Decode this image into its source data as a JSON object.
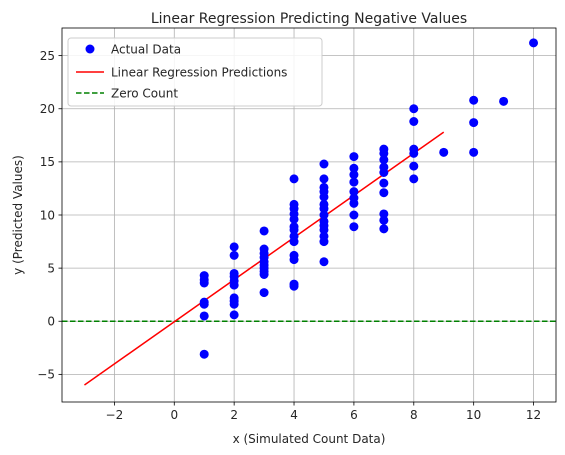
{
  "chart_data": {
    "type": "scatter",
    "title": "Linear Regression Predicting Negative Values",
    "xlabel": "x (Simulated Count Data)",
    "ylabel": "y (Predicted Values)",
    "xlim": [
      -3.75,
      12.75
    ],
    "ylim": [
      -7.6,
      27.6
    ],
    "xticks": [
      -2,
      0,
      2,
      4,
      6,
      8,
      10,
      12
    ],
    "yticks": [
      -5,
      0,
      5,
      10,
      15,
      20,
      25
    ],
    "grid": true,
    "legend_position": "upper-left",
    "series": [
      {
        "name": "Actual Data",
        "kind": "scatter",
        "color": "#0000ff",
        "points": [
          [
            1,
            4.3
          ],
          [
            1,
            3.9
          ],
          [
            1,
            3.6
          ],
          [
            1,
            1.8
          ],
          [
            1,
            1.6
          ],
          [
            1,
            0.5
          ],
          [
            1,
            -3.1
          ],
          [
            2,
            7.0
          ],
          [
            2,
            6.2
          ],
          [
            2,
            4.5
          ],
          [
            2,
            4.2
          ],
          [
            2,
            3.8
          ],
          [
            2,
            3.4
          ],
          [
            2,
            2.2
          ],
          [
            2,
            1.9
          ],
          [
            2,
            1.6
          ],
          [
            2,
            0.6
          ],
          [
            3,
            8.5
          ],
          [
            3,
            6.8
          ],
          [
            3,
            6.4
          ],
          [
            3,
            6.0
          ],
          [
            3,
            5.6
          ],
          [
            3,
            5.3
          ],
          [
            3,
            5.0
          ],
          [
            3,
            4.7
          ],
          [
            3,
            4.4
          ],
          [
            3,
            2.7
          ],
          [
            4,
            13.4
          ],
          [
            4,
            11.0
          ],
          [
            4,
            10.6
          ],
          [
            4,
            10.1
          ],
          [
            4,
            9.6
          ],
          [
            4,
            8.9
          ],
          [
            4,
            8.6
          ],
          [
            4,
            8.0
          ],
          [
            4,
            7.5
          ],
          [
            4,
            6.2
          ],
          [
            4,
            5.8
          ],
          [
            4,
            3.5
          ],
          [
            4,
            3.3
          ],
          [
            5,
            14.8
          ],
          [
            5,
            13.4
          ],
          [
            5,
            12.6
          ],
          [
            5,
            12.2
          ],
          [
            5,
            11.7
          ],
          [
            5,
            11.0
          ],
          [
            5,
            10.6
          ],
          [
            5,
            10.0
          ],
          [
            5,
            9.4
          ],
          [
            5,
            9.0
          ],
          [
            5,
            8.6
          ],
          [
            5,
            8.0
          ],
          [
            5,
            7.5
          ],
          [
            5,
            5.6
          ],
          [
            6,
            15.5
          ],
          [
            6,
            14.4
          ],
          [
            6,
            13.8
          ],
          [
            6,
            13.1
          ],
          [
            6,
            12.2
          ],
          [
            6,
            11.6
          ],
          [
            6,
            11.1
          ],
          [
            6,
            10.0
          ],
          [
            6,
            8.9
          ],
          [
            7,
            16.2
          ],
          [
            7,
            15.8
          ],
          [
            7,
            15.2
          ],
          [
            7,
            14.5
          ],
          [
            7,
            14.0
          ],
          [
            7,
            13.0
          ],
          [
            7,
            12.1
          ],
          [
            7,
            10.1
          ],
          [
            7,
            9.5
          ],
          [
            7,
            8.7
          ],
          [
            8,
            20.0
          ],
          [
            8,
            18.8
          ],
          [
            8,
            16.2
          ],
          [
            8,
            15.8
          ],
          [
            8,
            14.6
          ],
          [
            8,
            13.4
          ],
          [
            9,
            15.9
          ],
          [
            10,
            20.8
          ],
          [
            10,
            18.7
          ],
          [
            10,
            15.9
          ],
          [
            11,
            20.7
          ],
          [
            12,
            26.2
          ]
        ]
      },
      {
        "name": "Linear Regression Predictions",
        "kind": "line",
        "color": "#ff0000",
        "x": [
          -3,
          9
        ],
        "y": [
          -6.0,
          17.8
        ]
      },
      {
        "name": "Zero Count",
        "kind": "hline",
        "color": "#008000",
        "y": 0
      }
    ]
  }
}
